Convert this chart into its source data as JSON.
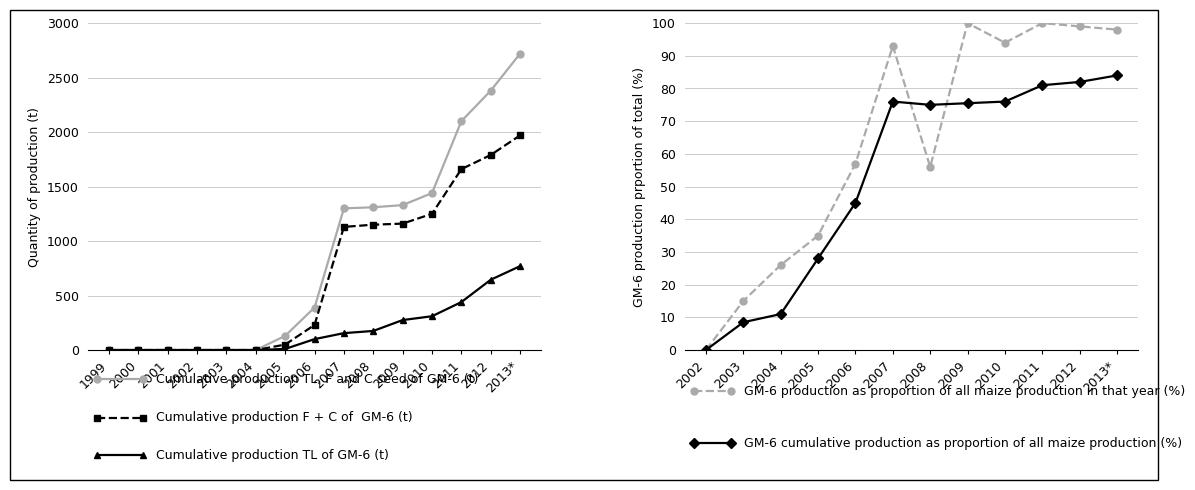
{
  "fig1": {
    "years": [
      "1999",
      "2000",
      "2001",
      "2002",
      "2003",
      "2004",
      "2005",
      "2006",
      "2007",
      "2008",
      "2009",
      "2010",
      "2011",
      "2012",
      "2013*"
    ],
    "grey_line": [
      0,
      0,
      0,
      0,
      0,
      0,
      130,
      390,
      1300,
      1310,
      1330,
      1440,
      2100,
      2380,
      2720
    ],
    "black_dashed": [
      0,
      0,
      0,
      0,
      0,
      0,
      50,
      230,
      1130,
      1150,
      1160,
      1250,
      1660,
      1790,
      1970
    ],
    "black_solid": [
      0,
      0,
      0,
      0,
      0,
      0,
      10,
      100,
      155,
      175,
      275,
      310,
      440,
      645,
      770
    ],
    "ylabel": "Quantity of production (t)",
    "ylim": [
      0,
      3000
    ],
    "yticks": [
      0,
      500,
      1000,
      1500,
      2000,
      2500,
      3000
    ],
    "legend_grey": "Cumulative production TL, F and C seed of GM-6 (t)",
    "legend_black_dashed": "Cumulative production F + C of  GM-6 (t)",
    "legend_black_solid": "Cumulative production TL of GM-6 (t)",
    "grey_color": "#aaaaaa",
    "black_color": "#000000"
  },
  "fig2": {
    "years": [
      "2002",
      "2003",
      "2004",
      "2005",
      "2006",
      "2007",
      "2008",
      "2009",
      "2010",
      "2011",
      "2012",
      "2013*"
    ],
    "grey_dashed": [
      0,
      15,
      26,
      35,
      57,
      93,
      56,
      100,
      94,
      100,
      99,
      98
    ],
    "black_solid": [
      0,
      8.5,
      11,
      28,
      45,
      76,
      75,
      75.5,
      76,
      81,
      82,
      84
    ],
    "ylabel": "GM-6 production prportion of total (%)",
    "ylim": [
      0,
      100
    ],
    "yticks": [
      0,
      10,
      20,
      30,
      40,
      50,
      60,
      70,
      80,
      90,
      100
    ],
    "legend_grey_dashed": "GM-6 production as proportion of all maize production in that year (%)",
    "legend_black_solid": "GM-6 cumulative production as proportion of all maize production (%)",
    "grey_color": "#aaaaaa",
    "black_color": "#000000"
  },
  "background_color": "#ffffff",
  "fontsize": 9,
  "border_color": "#000000"
}
